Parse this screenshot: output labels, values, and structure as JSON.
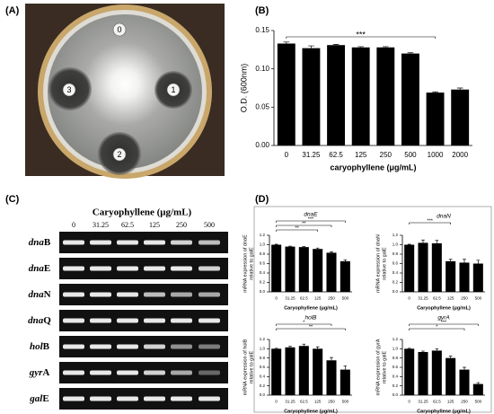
{
  "figure": {
    "panel_labels": [
      "(A)",
      "(B)",
      "(C)",
      "(D)"
    ],
    "plate": {
      "labels": [
        "0",
        "1",
        "2",
        "3"
      ]
    },
    "gel": {
      "title": "Caryophyllene (μg/mL)",
      "lanes": [
        "0",
        "31.25",
        "62.5",
        "125",
        "250",
        "500"
      ],
      "genes": [
        {
          "italic": "dna",
          "rest": "B"
        },
        {
          "italic": "dna",
          "rest": "E"
        },
        {
          "italic": "dna",
          "rest": "N"
        },
        {
          "italic": "dna",
          "rest": "Q"
        },
        {
          "italic": "hol",
          "rest": "B"
        },
        {
          "italic": "gyr",
          "rest": "A"
        },
        {
          "italic": "gal",
          "rest": "E"
        }
      ]
    }
  },
  "chart_data": [
    {
      "type": "bar",
      "categories": [
        "0",
        "31.25",
        "62.5",
        "125",
        "250",
        "500",
        "1000",
        "2000"
      ],
      "values": [
        0.133,
        0.127,
        0.131,
        0.128,
        0.128,
        0.12,
        0.069,
        0.073
      ],
      "errors": [
        0.002,
        0.003,
        0.001,
        0.001,
        0.001,
        0.001,
        0.001,
        0.002
      ],
      "color": "#000000",
      "ylim": [
        0,
        0.15
      ],
      "yticks": [
        {
          "value": 0,
          "label": "0.00"
        },
        0.05,
        {
          "value": 0.1,
          "label": "0.10"
        },
        0.15
      ],
      "xlabel": "caryophyllene (μg/mL)",
      "ylabel": [
        "O.D. (600nm)"
      ],
      "annotations": [
        "***"
      ]
    },
    {
      "type": "bar",
      "title": "dnaE",
      "categories": [
        "0",
        "31.25",
        "62.5",
        "125",
        "250",
        "500"
      ],
      "values": [
        1.0,
        0.96,
        0.95,
        0.91,
        0.83,
        0.65
      ],
      "errors": [
        0.01,
        0.01,
        0.01,
        0.02,
        0.02,
        0.03
      ],
      "color": "#000000",
      "ylim": [
        0,
        1.2
      ],
      "yticks": [
        {
          "value": 0,
          "label": "0.0"
        },
        0.2,
        0.4,
        0.6,
        0.8,
        {
          "value": 1,
          "label": "1.0"
        },
        1.2
      ],
      "xlabel": "Caryophyllene (μg/mL)",
      "ylabel": [
        "mRNA expression of dnaE",
        "relative to galE"
      ],
      "annotations": [
        "***",
        "**",
        "**"
      ]
    },
    {
      "type": "bar",
      "title": "dnaN",
      "categories": [
        "0",
        "31.25",
        "62.5",
        "125",
        "250",
        "500"
      ],
      "values": [
        1.0,
        1.04,
        1.03,
        0.65,
        0.62,
        0.6
      ],
      "errors": [
        0.01,
        0.06,
        0.06,
        0.04,
        0.07,
        0.07
      ],
      "color": "#000000",
      "ylim": [
        0,
        1.2
      ],
      "yticks": [
        {
          "value": 0,
          "label": "0.0"
        },
        0.2,
        0.4,
        0.6,
        0.8,
        {
          "value": 1,
          "label": "1.0"
        },
        1.2
      ],
      "xlabel": "Caryophyllene (μg/mL)",
      "ylabel": [
        "mRNA expression of dnaN",
        "relative to galE"
      ],
      "annotations": [
        "***"
      ]
    },
    {
      "type": "bar",
      "title": "holB",
      "categories": [
        "0",
        "31.25",
        "62.5",
        "125",
        "250",
        "500"
      ],
      "values": [
        1.0,
        1.03,
        1.06,
        1.0,
        0.75,
        0.55
      ],
      "errors": [
        0.01,
        0.02,
        0.04,
        0.04,
        0.06,
        0.08
      ],
      "color": "#000000",
      "ylim": [
        0,
        1.2
      ],
      "yticks": [
        {
          "value": 0,
          "label": "0.0"
        },
        0.2,
        0.4,
        0.6,
        0.8,
        {
          "value": 1,
          "label": "1.0"
        },
        1.2
      ],
      "xlabel": "Caryophyllene (μg/mL)",
      "ylabel": [
        "mRNA expression of holB",
        "relative to galE"
      ],
      "annotations": [
        "*",
        "**"
      ]
    },
    {
      "type": "bar",
      "title": "gyrA",
      "categories": [
        "0",
        "31.25",
        "62.5",
        "125",
        "250",
        "500"
      ],
      "values": [
        1.0,
        0.93,
        0.96,
        0.8,
        0.55,
        0.24
      ],
      "errors": [
        0.01,
        0.02,
        0.04,
        0.04,
        0.05,
        0.03
      ],
      "color": "#000000",
      "ylim": [
        0,
        1.2
      ],
      "yticks": [
        {
          "value": 0,
          "label": "0.0"
        },
        0.2,
        0.4,
        0.6,
        0.8,
        {
          "value": 1,
          "label": "1.0"
        },
        1.2
      ],
      "xlabel": "Caryophyllene (μg/mL)",
      "ylabel": [
        "mRNA expression of gyrA",
        "relative to galE"
      ],
      "annotations": [
        "***",
        "*"
      ]
    }
  ]
}
